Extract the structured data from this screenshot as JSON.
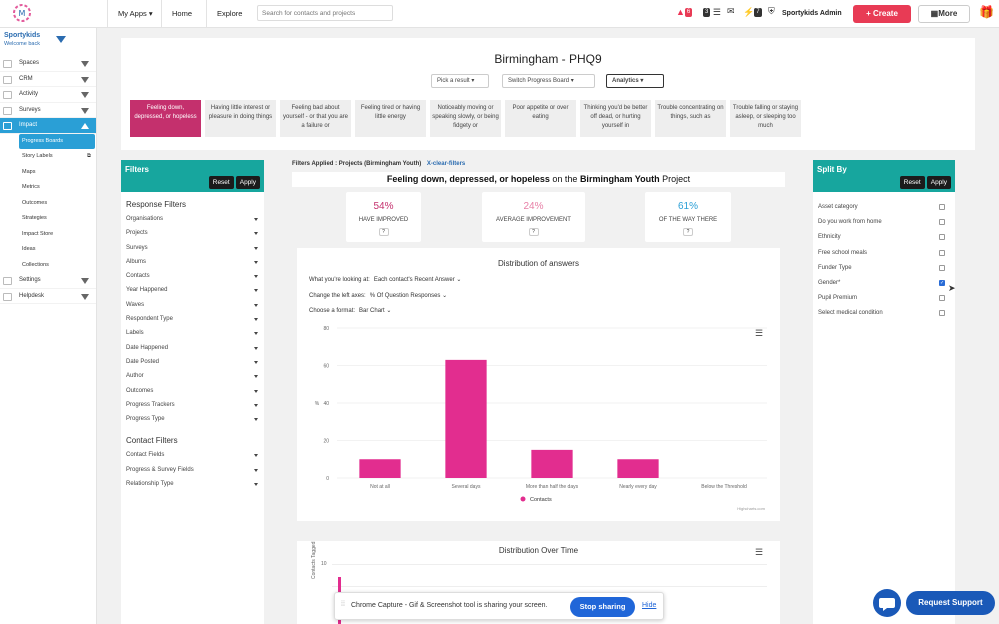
{
  "topbar": {
    "my_apps": "My Apps ▾",
    "home": "Home",
    "explore": "Explore",
    "search_placeholder": "Search for contacts and projects",
    "badge_red": "6",
    "badge_dark1": "3",
    "badge_dark2": "7",
    "user": "Sportykids Admin",
    "create": "+ Create",
    "more": "More"
  },
  "sidebar": {
    "org": "Sportykids",
    "welcome": "Welcome back",
    "items": [
      {
        "label": "Spaces"
      },
      {
        "label": "CRM"
      },
      {
        "label": "Activity"
      },
      {
        "label": "Surveys"
      },
      {
        "label": "Impact"
      }
    ],
    "sub": [
      "Progress Boards",
      "Story Labels",
      "Maps",
      "Metrics",
      "Outcomes",
      "Strategies",
      "Impact Store",
      "Ideas",
      "Collections"
    ],
    "items2": [
      {
        "label": "Settings"
      },
      {
        "label": "Helpdesk"
      }
    ]
  },
  "header": {
    "title": "Birmingham - PHQ9",
    "pick": "Pick a result",
    "switch": "Switch Progress Board",
    "analytics": "Analytics"
  },
  "questions": [
    "Feeling down, depressed, or hopeless",
    "Having little interest or pleasure in doing things",
    "Feeling bad about yourself - or that you are a failure or",
    "Feeling tired or having little energy",
    "Noticeably moving or speaking slowly, or being fidgety or",
    "Poor appetite or over eating",
    "Thinking you'd be better off dead, or hurting yourself in",
    "Trouble concentrating on things, such as",
    "Trouble falling or staying asleep, or sleeping too much"
  ],
  "filters": {
    "title": "Filters",
    "reset": "Reset",
    "apply": "Apply",
    "response_title": "Response Filters",
    "response": [
      "Organisations",
      "Projects",
      "Surveys",
      "Albums",
      "Contacts",
      "Year Happened",
      "Waves",
      "Respondent Type",
      "Labels",
      "Date Happened",
      "Date Posted",
      "Author",
      "Outcomes",
      "Progress Trackers",
      "Progress Type"
    ],
    "contact_title": "Contact Filters",
    "contact": [
      "Contact Fields",
      "Progress & Survey Fields",
      "Relationship Type"
    ]
  },
  "applied": {
    "text": "Filters Applied : Projects (Birmingham Youth)",
    "clear": "X-clear-filters"
  },
  "heading": {
    "q": "Feeling down, depressed, or hopeless",
    "mid": " on the ",
    "proj": "Birmingham Youth",
    "end": " Project"
  },
  "stats": [
    {
      "value": "54%",
      "label": "HAVE IMPROVED",
      "color": "#c4306d"
    },
    {
      "value": "24%",
      "label": "AVERAGE IMPROVEMENT",
      "color": "#e77fa6"
    },
    {
      "value": "61%",
      "label": "OF THE WAY THERE",
      "color": "#2a9fd6"
    }
  ],
  "stat_q": "?",
  "distribution": {
    "title": "Distribution of answers",
    "look_label": "What you're looking at:",
    "look_value": "Each contact's Recent Answer",
    "axes_label": "Change the left axes:",
    "axes_value": "% Of Question Responses",
    "format_label": "Choose a format:",
    "format_value": "Bar Chart",
    "credit": "Highcharts.com"
  },
  "chart_data": {
    "type": "bar",
    "categories": [
      "Not at all",
      "Several days",
      "More than half the days",
      "Nearly every day",
      "Below the Threshold"
    ],
    "series": [
      {
        "name": "Contacts",
        "values": [
          10,
          63,
          15,
          10,
          0
        ]
      }
    ],
    "ylabel": "%",
    "ylim": [
      0,
      80
    ],
    "yticks": [
      0,
      20,
      40,
      60,
      80
    ],
    "color": "#e22d8f",
    "legend": "bottom"
  },
  "over_time": {
    "title": "Distribution Over Time",
    "ylabel": "Contacts Tagged",
    "ytick": "10"
  },
  "split": {
    "title": "Split By",
    "reset": "Reset",
    "apply": "Apply",
    "items": [
      {
        "label": "Asset category",
        "checked": false
      },
      {
        "label": "Do you work from home",
        "checked": false
      },
      {
        "label": "Ethnicity",
        "checked": false
      },
      {
        "label": "Free school meals",
        "checked": false
      },
      {
        "label": "Funder Type",
        "checked": false
      },
      {
        "label": "Gender*",
        "checked": true
      },
      {
        "label": "Pupil Premium",
        "checked": false
      },
      {
        "label": "Select medical condition",
        "checked": false
      }
    ]
  },
  "share": {
    "text": "Chrome Capture - Gif & Screenshot tool is sharing your screen.",
    "stop": "Stop sharing",
    "hide": "Hide"
  },
  "support": {
    "label": "Request Support"
  }
}
